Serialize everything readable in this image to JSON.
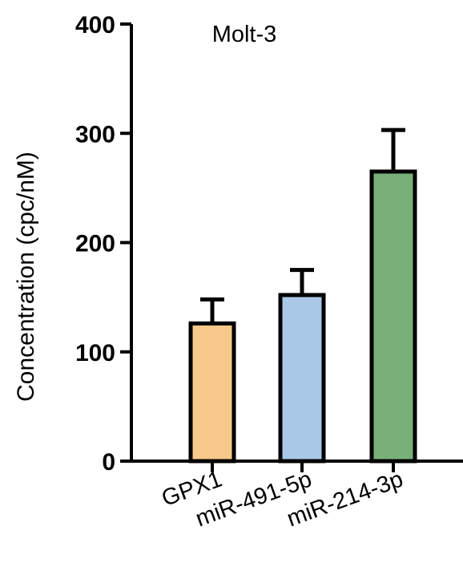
{
  "chart_data": {
    "type": "bar",
    "title": "Molt-3",
    "xlabel": "",
    "ylabel": "Concentration (cpc/nM)",
    "ylim": [
      0,
      400
    ],
    "yticks": [
      "0",
      "100",
      "200",
      "300",
      "400"
    ],
    "grid": false,
    "legend": "none",
    "categories": [
      "GPX1",
      "miR-491-5p",
      "miR-214-3p"
    ],
    "values": [
      126,
      152,
      265
    ],
    "errors": [
      22,
      23,
      38
    ],
    "colors": [
      "#f8c98a",
      "#a9c8e8",
      "#78b07a"
    ],
    "edge_color": "#000000"
  }
}
